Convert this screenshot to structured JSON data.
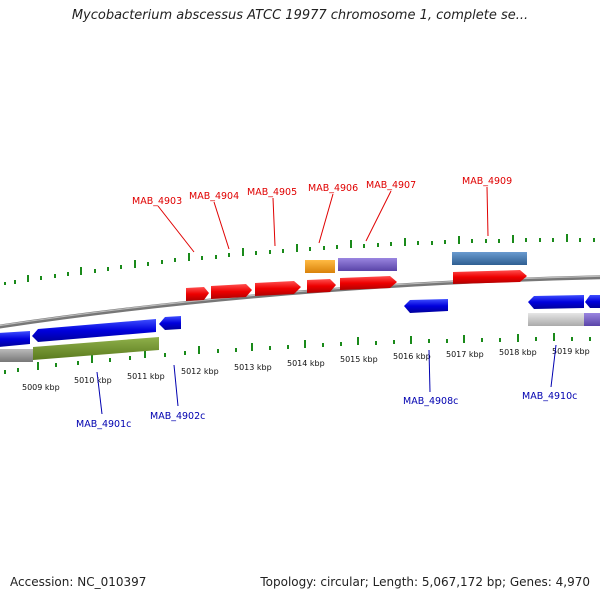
{
  "title": "Mycobacterium abscessus ATCC 19977 chromosome 1, complete se...",
  "footer": {
    "accession": "Accession: NC_010397",
    "summary": "Topology: circular; Length: 5,067,172 bp; Genes: 4,970"
  },
  "ticks": [
    "5009 kbp",
    "5010 kbp",
    "5011 kbp",
    "5012 kbp",
    "5013 kbp",
    "5014 kbp",
    "5015 kbp",
    "5016 kbp",
    "5017 kbp",
    "5018 kbp",
    "5019 kbp"
  ],
  "top_labels": [
    "MAB_4903",
    "MAB_4904",
    "MAB_4905",
    "MAB_4906",
    "MAB_4907",
    "MAB_4909"
  ],
  "bottom_labels": [
    "MAB_4901c",
    "MAB_4902c",
    "MAB_4908c",
    "MAB_4910c"
  ],
  "colors": {
    "forward_gene": "#ee0000",
    "reverse_gene": "#0000dd",
    "tick_mark": "#1a8a1a",
    "backbone": "#888888",
    "green_feature": "#6b8e23",
    "orange_feature": "#f39a12",
    "purple_feature": "#7b61c9",
    "steelblue_feature": "#4a7fb5"
  }
}
